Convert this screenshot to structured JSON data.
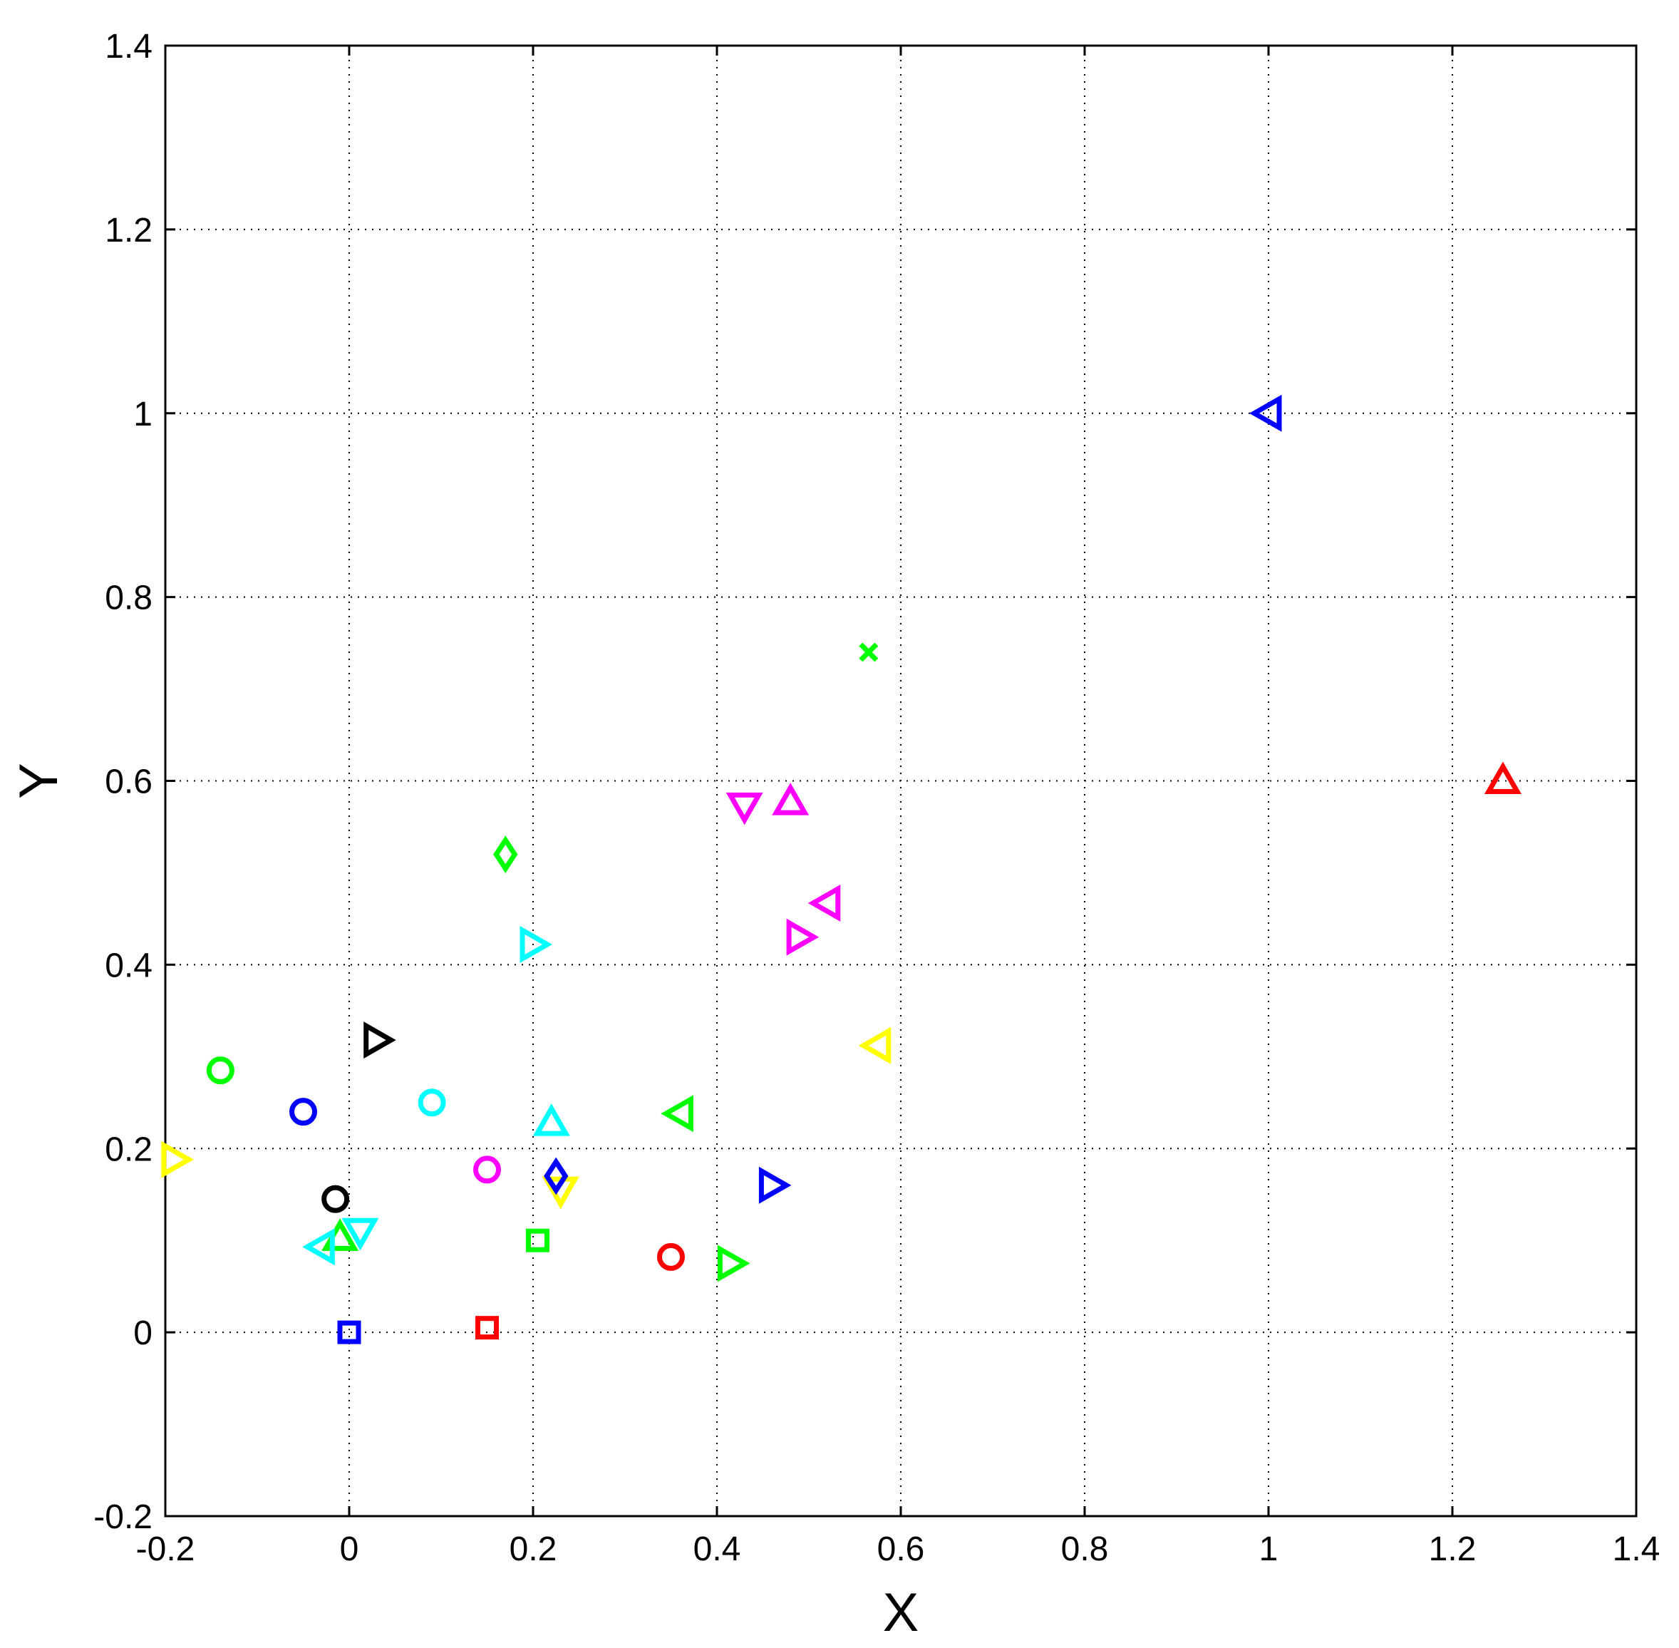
{
  "chart_data": {
    "type": "scatter",
    "title": "",
    "xlabel": "X",
    "ylabel": "Y",
    "xlim": [
      -0.2,
      1.4
    ],
    "ylim": [
      -0.2,
      1.4
    ],
    "xticks": [
      -0.2,
      0,
      0.2,
      0.4,
      0.6,
      0.8,
      1,
      1.2,
      1.4
    ],
    "yticks": [
      -0.2,
      0,
      0.2,
      0.4,
      0.6,
      0.8,
      1,
      1.2,
      1.4
    ],
    "xtick_labels": [
      "-0.2",
      "0",
      "0.2",
      "0.4",
      "0.6",
      "0.8",
      "1",
      "1.2",
      "1.4"
    ],
    "ytick_labels": [
      "-0.2",
      "0",
      "0.2",
      "0.4",
      "0.6",
      "0.8",
      "1",
      "1.2",
      "1.4"
    ],
    "grid": true,
    "grid_style": "dotted",
    "points": [
      {
        "x": 1.0,
        "y": 1.0,
        "marker": "triangle-left",
        "color": "#0000ff"
      },
      {
        "x": 1.255,
        "y": 0.6,
        "marker": "triangle-up",
        "color": "#ff0000"
      },
      {
        "x": 0.565,
        "y": 0.74,
        "marker": "x",
        "color": "#00ff00"
      },
      {
        "x": 0.43,
        "y": 0.573,
        "marker": "triangle-down",
        "color": "#ff00ff"
      },
      {
        "x": 0.48,
        "y": 0.577,
        "marker": "triangle-up",
        "color": "#ff00ff"
      },
      {
        "x": 0.52,
        "y": 0.467,
        "marker": "triangle-left",
        "color": "#ff00ff"
      },
      {
        "x": 0.49,
        "y": 0.43,
        "marker": "triangle-right",
        "color": "#ff00ff"
      },
      {
        "x": 0.17,
        "y": 0.52,
        "marker": "diamond",
        "color": "#00ff00"
      },
      {
        "x": 0.2,
        "y": 0.422,
        "marker": "triangle-right",
        "color": "#00ffff"
      },
      {
        "x": 0.575,
        "y": 0.312,
        "marker": "triangle-left",
        "color": "#ffff00"
      },
      {
        "x": 0.03,
        "y": 0.318,
        "marker": "triangle-right",
        "color": "#000000"
      },
      {
        "x": -0.14,
        "y": 0.285,
        "marker": "circle",
        "color": "#00ff00"
      },
      {
        "x": -0.05,
        "y": 0.24,
        "marker": "circle",
        "color": "#0000ff"
      },
      {
        "x": 0.09,
        "y": 0.25,
        "marker": "circle",
        "color": "#00ffff"
      },
      {
        "x": 0.22,
        "y": 0.228,
        "marker": "triangle-up",
        "color": "#00ffff"
      },
      {
        "x": 0.36,
        "y": 0.238,
        "marker": "triangle-left",
        "color": "#00ff00"
      },
      {
        "x": -0.19,
        "y": 0.188,
        "marker": "triangle-right",
        "color": "#ffff00"
      },
      {
        "x": 0.15,
        "y": 0.177,
        "marker": "circle",
        "color": "#ff00ff"
      },
      {
        "x": 0.23,
        "y": 0.155,
        "marker": "triangle-down",
        "color": "#ffff00"
      },
      {
        "x": 0.225,
        "y": 0.17,
        "marker": "diamond",
        "color": "#0000ff"
      },
      {
        "x": 0.46,
        "y": 0.16,
        "marker": "triangle-right",
        "color": "#0000ff"
      },
      {
        "x": -0.015,
        "y": 0.145,
        "marker": "circle",
        "color": "#000000"
      },
      {
        "x": 0.012,
        "y": 0.11,
        "marker": "triangle-down",
        "color": "#00ffff"
      },
      {
        "x": -0.01,
        "y": 0.103,
        "marker": "triangle-up",
        "color": "#00ff00"
      },
      {
        "x": -0.03,
        "y": 0.093,
        "marker": "triangle-left",
        "color": "#00ffff"
      },
      {
        "x": 0.205,
        "y": 0.1,
        "marker": "square",
        "color": "#00ff00"
      },
      {
        "x": 0.35,
        "y": 0.082,
        "marker": "circle",
        "color": "#ff0000"
      },
      {
        "x": 0.415,
        "y": 0.075,
        "marker": "triangle-right",
        "color": "#00ff00"
      },
      {
        "x": 0.15,
        "y": 0.005,
        "marker": "square",
        "color": "#ff0000"
      },
      {
        "x": 0.0,
        "y": 0.0,
        "marker": "square",
        "color": "#0000ff"
      }
    ]
  }
}
